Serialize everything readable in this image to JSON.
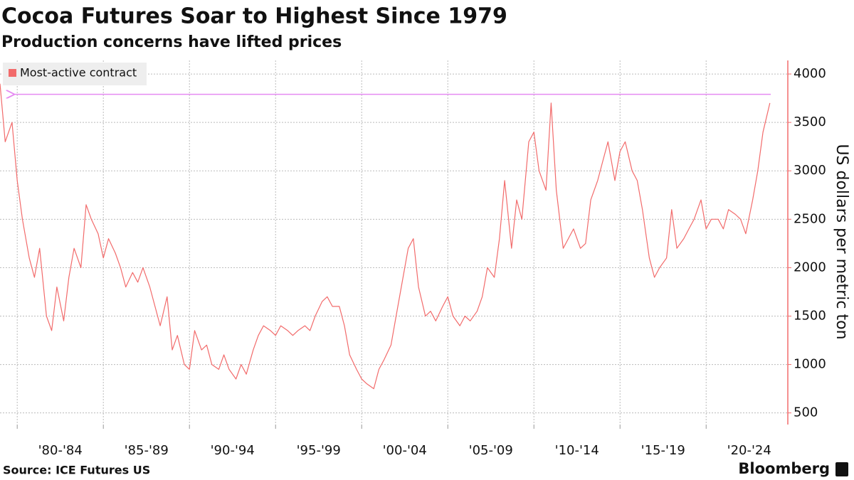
{
  "chart_data": {
    "type": "line",
    "title": "Cocoa Futures Soar to Highest Since 1979",
    "subtitle": "Production concerns have lifted prices",
    "y_axis_label": "US dollars per metric ton",
    "source": "Source: ICE Futures US",
    "brand": "Bloomberg",
    "legend_position": "top-left",
    "grid": true,
    "xlim": [
      1979,
      2023.75
    ],
    "ylim": [
      380,
      4140
    ],
    "yticks": [
      500,
      1000,
      1500,
      2000,
      2500,
      3000,
      3500,
      4000
    ],
    "xgrid": [
      1980,
      1985,
      1990,
      1995,
      2000,
      2005,
      2010,
      2015,
      2020
    ],
    "xticks": [
      {
        "value": 1982.5,
        "label": "'80-'84"
      },
      {
        "value": 1987.5,
        "label": "'85-'89"
      },
      {
        "value": 1992.5,
        "label": "'90-'94"
      },
      {
        "value": 1997.5,
        "label": "'95-'99"
      },
      {
        "value": 2002.5,
        "label": "'00-'04"
      },
      {
        "value": 2007.5,
        "label": "'05-'09"
      },
      {
        "value": 2012.5,
        "label": "'10-'14"
      },
      {
        "value": 2017.5,
        "label": "'15-'19"
      },
      {
        "value": 2022.5,
        "label": "'20-'24"
      }
    ],
    "reference_line": {
      "value": 3790,
      "from": 1979.8,
      "color": "#e58af2"
    },
    "x": [
      1979,
      1979.3,
      1979.7,
      1980,
      1980.3,
      1980.7,
      1981,
      1981.3,
      1981.7,
      1982,
      1982.3,
      1982.7,
      1983,
      1983.3,
      1983.7,
      1984,
      1984.3,
      1984.7,
      1985,
      1985.3,
      1985.7,
      1986,
      1986.3,
      1986.7,
      1987,
      1987.3,
      1987.7,
      1988,
      1988.3,
      1988.7,
      1989,
      1989.3,
      1989.7,
      1990,
      1990.3,
      1990.7,
      1991,
      1991.3,
      1991.7,
      1992,
      1992.3,
      1992.7,
      1993,
      1993.3,
      1993.7,
      1994,
      1994.3,
      1994.7,
      1995,
      1995.3,
      1995.7,
      1996,
      1996.3,
      1996.7,
      1997,
      1997.3,
      1997.7,
      1998,
      1998.3,
      1998.7,
      1999,
      1999.3,
      1999.7,
      2000,
      2000.3,
      2000.7,
      2001,
      2001.3,
      2001.7,
      2002,
      2002.3,
      2002.7,
      2003,
      2003.3,
      2003.7,
      2004,
      2004.3,
      2004.7,
      2005,
      2005.3,
      2005.7,
      2006,
      2006.3,
      2006.7,
      2007,
      2007.3,
      2007.7,
      2008,
      2008.3,
      2008.7,
      2009,
      2009.3,
      2009.7,
      2010,
      2010.3,
      2010.7,
      2011,
      2011.3,
      2011.7,
      2012,
      2012.3,
      2012.7,
      2013,
      2013.3,
      2013.7,
      2014,
      2014.3,
      2014.7,
      2015,
      2015.3,
      2015.7,
      2016,
      2016.3,
      2016.7,
      2017,
      2017.3,
      2017.7,
      2018,
      2018.3,
      2018.7,
      2019,
      2019.3,
      2019.7,
      2020,
      2020.3,
      2020.7,
      2021,
      2021.3,
      2021.7,
      2022,
      2022.3,
      2022.7,
      2023,
      2023.3,
      2023.7
    ],
    "series": [
      {
        "name": "Most-active contract",
        "color": "#f26b6b",
        "values": [
          3900,
          3300,
          3500,
          2900,
          2500,
          2100,
          1900,
          2200,
          1500,
          1350,
          1800,
          1450,
          1900,
          2200,
          2000,
          2650,
          2500,
          2350,
          2100,
          2300,
          2150,
          2000,
          1800,
          1950,
          1850,
          2000,
          1800,
          1600,
          1400,
          1700,
          1150,
          1300,
          1000,
          950,
          1350,
          1150,
          1200,
          1000,
          950,
          1100,
          950,
          850,
          1000,
          900,
          1150,
          1300,
          1400,
          1350,
          1300,
          1400,
          1350,
          1300,
          1350,
          1400,
          1350,
          1500,
          1650,
          1700,
          1600,
          1600,
          1400,
          1100,
          950,
          850,
          800,
          750,
          950,
          1050,
          1200,
          1500,
          1800,
          2200,
          2300,
          1800,
          1500,
          1550,
          1450,
          1600,
          1700,
          1500,
          1400,
          1500,
          1450,
          1550,
          1700,
          2000,
          1900,
          2300,
          2900,
          2200,
          2700,
          2500,
          3300,
          3400,
          3000,
          2800,
          3700,
          2800,
          2200,
          2300,
          2400,
          2200,
          2250,
          2700,
          2900,
          3100,
          3300,
          2900,
          3200,
          3300,
          3000,
          2900,
          2600,
          2100,
          1900,
          2000,
          2100,
          2600,
          2200,
          2300,
          2400,
          2500,
          2700,
          2400,
          2500,
          2500,
          2400,
          2600,
          2550,
          2500,
          2350,
          2700,
          3000,
          3400,
          3700
        ]
      }
    ]
  }
}
